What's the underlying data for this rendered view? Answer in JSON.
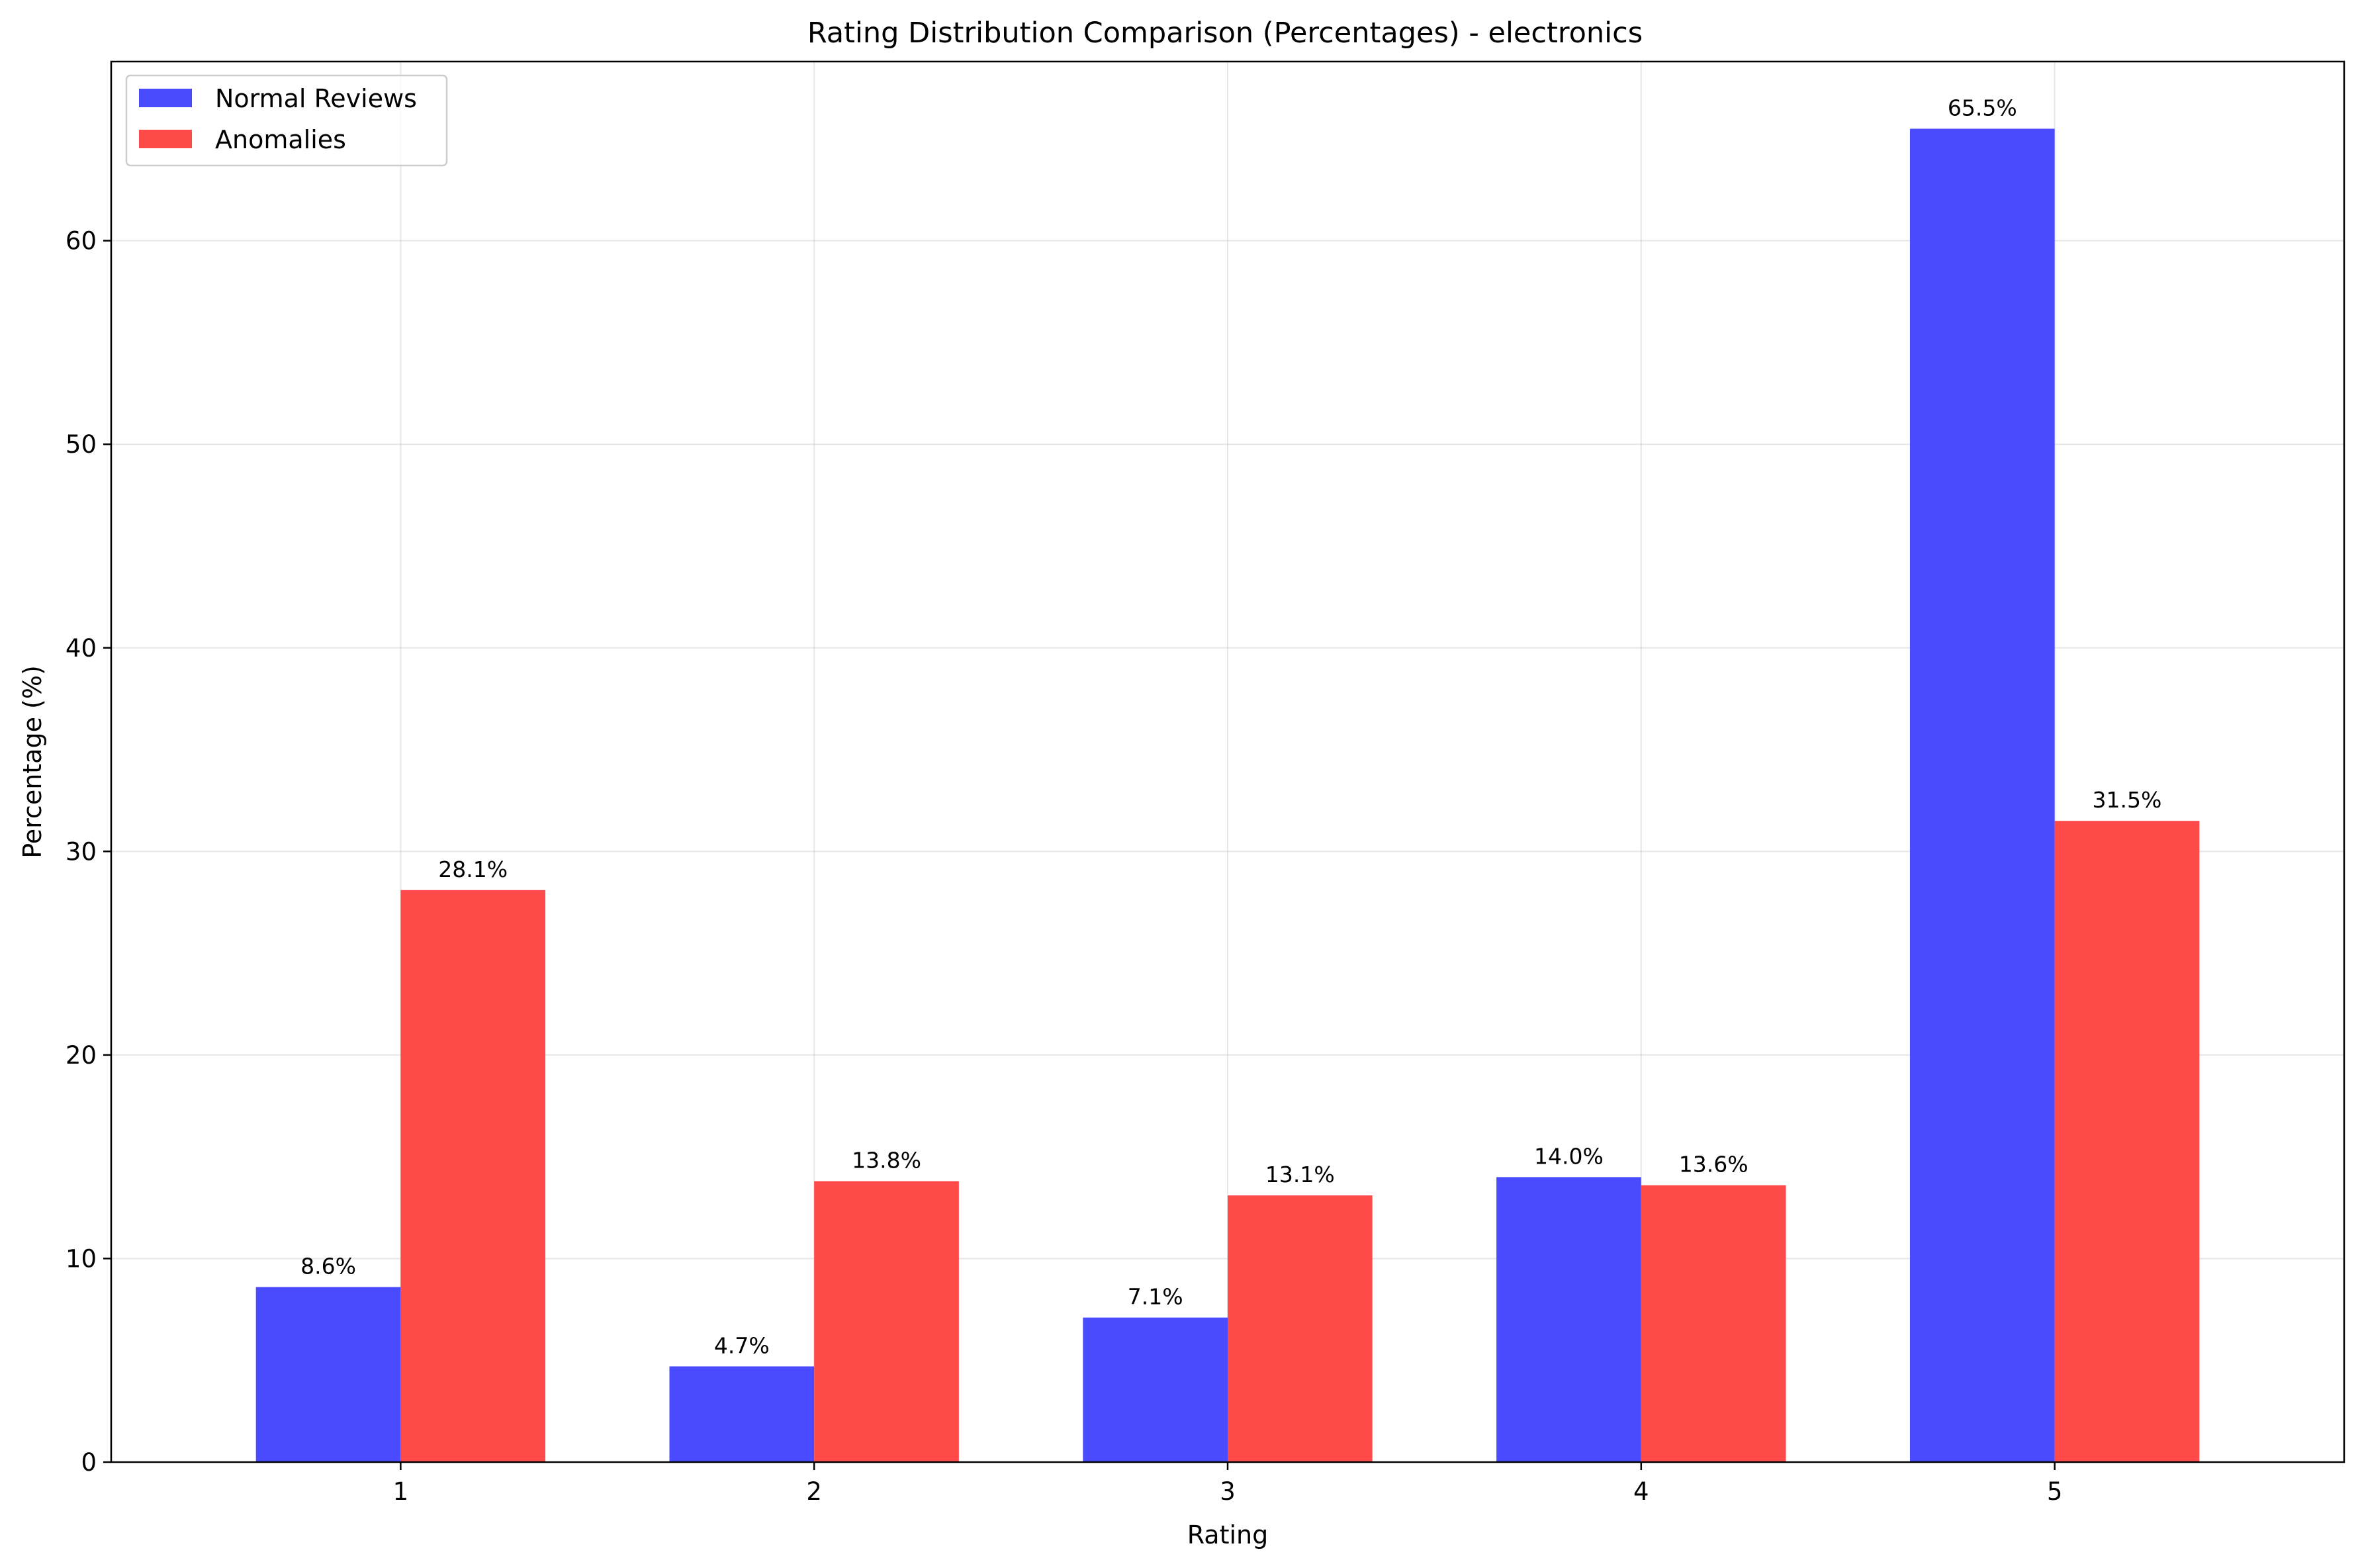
{
  "chart_data": {
    "type": "bar",
    "title": "Rating Distribution Comparison (Percentages) - electronics",
    "xlabel": "Rating",
    "ylabel": "Percentage (%)",
    "categories": [
      "1",
      "2",
      "3",
      "4",
      "5"
    ],
    "series": [
      {
        "name": "Normal Reviews",
        "color": "#4a4aff",
        "values": [
          8.6,
          4.7,
          7.1,
          14.0,
          65.5
        ],
        "labels": [
          "8.6%",
          "4.7%",
          "7.1%",
          "14.0%",
          "65.5%"
        ]
      },
      {
        "name": "Anomalies",
        "color": "#ff4a4a",
        "values": [
          28.1,
          13.8,
          13.1,
          13.6,
          31.5
        ],
        "labels": [
          "28.1%",
          "13.8%",
          "13.1%",
          "13.6%",
          "31.5%"
        ]
      }
    ],
    "ylim": [
      0,
      68.8
    ],
    "yticks": [
      0,
      10,
      20,
      30,
      40,
      50,
      60
    ],
    "grid": true,
    "legend": "top-left"
  }
}
